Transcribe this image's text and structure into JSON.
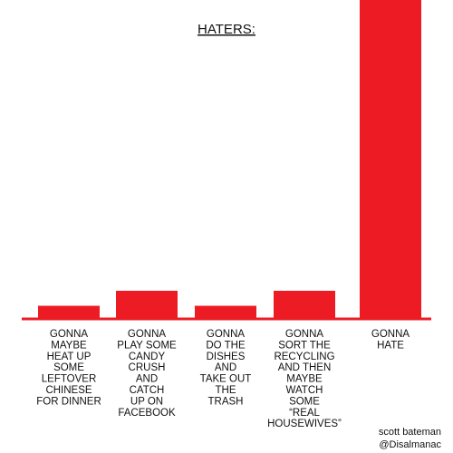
{
  "chart_data": {
    "type": "bar",
    "title": "HATERS:",
    "categories": [
      [
        "GONNA",
        "MAYBE",
        "HEAT UP",
        "SOME",
        "LEFTOVER",
        "CHINESE",
        "FOR DINNER"
      ],
      [
        "GONNA",
        "PLAY SOME",
        "CANDY",
        "CRUSH",
        "AND",
        "CATCH",
        "UP ON",
        "FACEBOOK"
      ],
      [
        "GONNA",
        "DO  THE",
        "DISHES",
        "AND",
        "TAKE OUT",
        "THE",
        "TRASH"
      ],
      [
        "GONNA",
        "SORT THE",
        "RECYCLING",
        "AND THEN",
        "MAYBE",
        "WATCH",
        "SOME",
        "“REAL",
        "HOUSEWIVES”"
      ],
      [
        "GONNA",
        "HATE"
      ]
    ],
    "values": [
      3.5,
      7.5,
      3.5,
      7.5,
      85
    ],
    "ylim": [
      0,
      85
    ],
    "xlabel": "",
    "ylabel": "",
    "grid": false,
    "bar_color": "#ed1c24",
    "axis_color": "#ed1c24"
  },
  "credit": {
    "line1": "scott bateman",
    "line2": "@Disalmanac"
  }
}
